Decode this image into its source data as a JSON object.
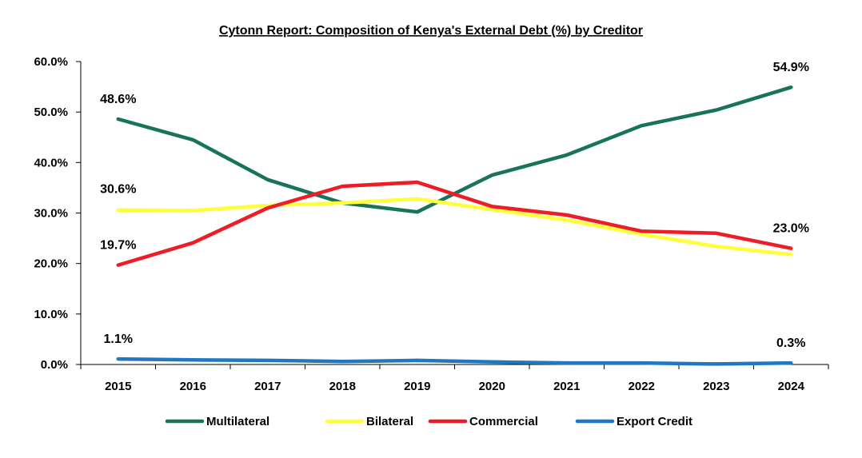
{
  "chart_data": {
    "type": "line",
    "title": "Cytonn Report: Composition of Kenya's External Debt (%) by Creditor",
    "xlabel": "",
    "ylabel": "",
    "ylim": [
      0,
      60
    ],
    "y_tick_labels": [
      "0.0%",
      "10.0%",
      "20.0%",
      "30.0%",
      "40.0%",
      "50.0%",
      "60.0%"
    ],
    "categories": [
      "2015",
      "2016",
      "2017",
      "2018",
      "2019",
      "2020",
      "2021",
      "2022",
      "2023",
      "2024"
    ],
    "grid": false,
    "legend_position": "bottom",
    "series": [
      {
        "name": "Multilateral",
        "color": "#17735A",
        "values": [
          48.6,
          44.5,
          36.6,
          32.0,
          30.2,
          37.5,
          41.5,
          47.3,
          50.4,
          54.9
        ]
      },
      {
        "name": "Bilateral",
        "color": "#FFFF3A",
        "values": [
          30.6,
          30.5,
          31.5,
          32.0,
          32.8,
          30.7,
          28.6,
          25.8,
          23.4,
          21.8
        ]
      },
      {
        "name": "Commercial",
        "color": "#EE1C25",
        "values": [
          19.7,
          24.1,
          31.0,
          35.3,
          36.1,
          31.3,
          29.6,
          26.4,
          26.0,
          23.0
        ]
      },
      {
        "name": "Export Credit",
        "color": "#1F78C1",
        "values": [
          1.1,
          0.9,
          0.8,
          0.6,
          0.8,
          0.5,
          0.3,
          0.3,
          0.1,
          0.3
        ]
      }
    ],
    "data_labels": [
      {
        "series": 0,
        "index": 0,
        "text": "48.6%"
      },
      {
        "series": 0,
        "index": 9,
        "text": "54.9%"
      },
      {
        "series": 1,
        "index": 0,
        "text": "30.6%"
      },
      {
        "series": 2,
        "index": 0,
        "text": "19.7%"
      },
      {
        "series": 2,
        "index": 9,
        "text": "23.0%"
      },
      {
        "series": 3,
        "index": 0,
        "text": "1.1%"
      },
      {
        "series": 3,
        "index": 9,
        "text": "0.3%"
      }
    ]
  }
}
